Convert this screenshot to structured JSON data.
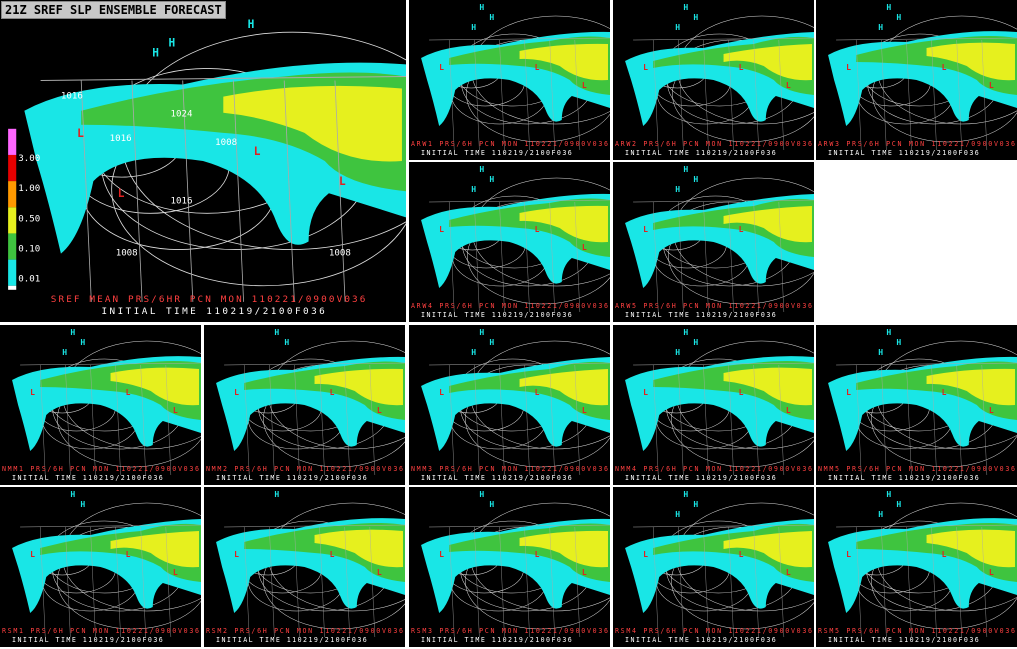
{
  "title": "21Z SREF SLP ENSEMBLE FORECAST",
  "legend": {
    "labels": [
      "3.00",
      "1.00",
      "0.50",
      "0.10",
      "0.01"
    ]
  },
  "panels": [
    {
      "label": "SREF MEAN PRS/6HR PCN  MON 110221/0900V036",
      "init": "INITIAL TIME 110219/2100F036",
      "symbols": [
        "H",
        "H",
        "H",
        "L",
        "L",
        "L",
        "L"
      ],
      "isobars": [
        "1016",
        "1024",
        "1016",
        "1008",
        "1016",
        "1008",
        "1008"
      ]
    },
    {
      "label": "ARW1 PRS/6H PCN  MON 110221/0900V036",
      "init": "INITIAL TIME 110219/2100F036",
      "symbols": [
        "H",
        "H",
        "H",
        "L",
        "L",
        "L"
      ]
    },
    {
      "label": "ARW2 PRS/6H PCN  MON 110221/0900V036",
      "init": "INITIAL TIME 110219/2100F036",
      "symbols": [
        "H",
        "H",
        "H",
        "L",
        "L",
        "L"
      ]
    },
    {
      "label": "ARW3 PRS/6H PCN  MON 110221/0900V036",
      "init": "INITIAL TIME 110219/2100F036",
      "symbols": [
        "H",
        "H",
        "H",
        "L",
        "L",
        "L"
      ]
    },
    {
      "label": "ARW4 PRS/6H PCN  MON 110221/0900V036",
      "init": "INITIAL TIME 110219/2100F036",
      "symbols": [
        "H",
        "H",
        "H",
        "L",
        "L",
        "L"
      ]
    },
    {
      "label": "ARW5 PRS/6H PCN  MON 110221/0900V036",
      "init": "INITIAL TIME 110219/2100F036",
      "symbols": [
        "H",
        "H",
        "H",
        "L",
        "L"
      ]
    },
    {
      "label": "NMM1 PRS/6H PCN  MON 110221/0900V036",
      "init": "INITIAL TIME 110219/2100F036",
      "symbols": [
        "H",
        "H",
        "H",
        "L",
        "L",
        "L"
      ]
    },
    {
      "label": "NMM2 PRS/6H PCN  MON 110221/0900V036",
      "init": "INITIAL TIME 110219/2100F036",
      "symbols": [
        "H",
        "H",
        "L",
        "L",
        "L"
      ]
    },
    {
      "label": "NMM3 PRS/6H PCN  MON 110221/0900V036",
      "init": "INITIAL TIME 110219/2100F036",
      "symbols": [
        "H",
        "H",
        "H",
        "L",
        "L",
        "L"
      ]
    },
    {
      "label": "NMM4 PRS/6H PCN  MON 110221/0900V036",
      "init": "INITIAL TIME 110219/2100F036",
      "symbols": [
        "H",
        "H",
        "H",
        "L",
        "L",
        "L"
      ]
    },
    {
      "label": "NMM5 PRS/6H PCN  MON 110221/0900V036",
      "init": "INITIAL TIME 110219/2100F036",
      "symbols": [
        "H",
        "H",
        "H",
        "L",
        "L",
        "L"
      ]
    },
    {
      "label": "RSM1 PRS/6H PCN  MON 110221/0900V036",
      "init": "INITIAL TIME 110219/2100F036",
      "symbols": [
        "H",
        "H",
        "L",
        "L",
        "L"
      ]
    },
    {
      "label": "RSM2 PRS/6H PCN  MON 110221/0900V036",
      "init": "INITIAL TIME 110219/2100F036",
      "symbols": [
        "H",
        "L",
        "L",
        "L"
      ]
    },
    {
      "label": "RSM3 PRS/6H PCN  MON 110221/0900V036",
      "init": "INITIAL TIME 110219/2100F036",
      "symbols": [
        "H",
        "H",
        "L",
        "L",
        "L"
      ]
    },
    {
      "label": "RSM4 PRS/6H PCN  MON 110221/0900V036",
      "init": "INITIAL TIME 110219/2100F036",
      "symbols": [
        "H",
        "H",
        "H",
        "L",
        "L",
        "L"
      ]
    },
    {
      "label": "RSM5 PRS/6H PCN  MON 110221/0900V036",
      "init": "INITIAL TIME 110219/2100F036",
      "symbols": [
        "H",
        "H",
        "H",
        "L",
        "L",
        "L"
      ]
    }
  ]
}
